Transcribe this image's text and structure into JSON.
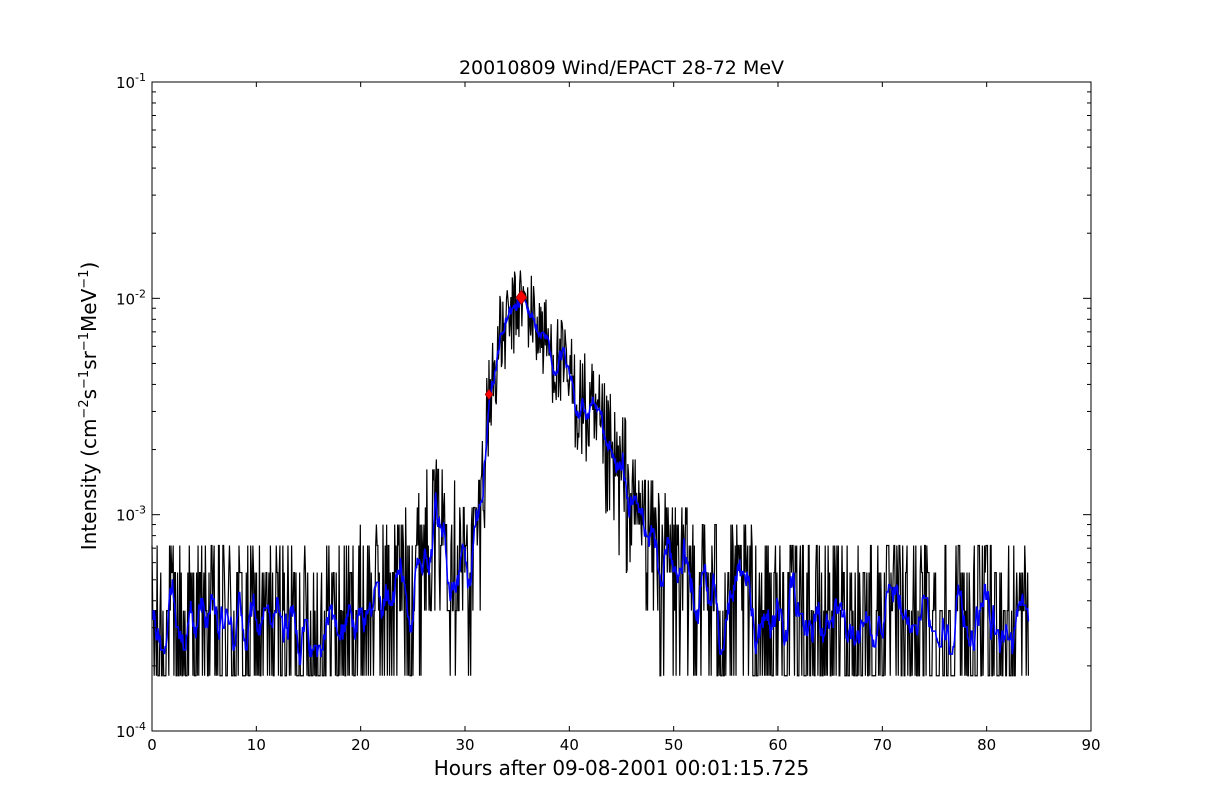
{
  "chart_data": {
    "type": "line",
    "title": "20010809 Wind/EPACT 28-72 MeV",
    "xlabel": "Hours after 09-08-2001 00:01:15.725",
    "ylabel": {
      "base": "Intensity (cm",
      "e1": "−2",
      "t1": "s",
      "e2": "−1",
      "t2": "sr",
      "e3": "−1",
      "t3": "MeV",
      "e4": "−1",
      "t4": ")"
    },
    "xlim": [
      0,
      90
    ],
    "ylim": [
      0.0001,
      0.1
    ],
    "yscale": "log",
    "grid": false,
    "x_tick_labels": [
      "0",
      "10",
      "20",
      "30",
      "40",
      "50",
      "60",
      "70",
      "80",
      "90"
    ],
    "y_tick_labels": [
      {
        "base": "10",
        "exp": "-4"
      },
      {
        "base": "10",
        "exp": "-3"
      },
      {
        "base": "10",
        "exp": "-2"
      },
      {
        "base": "10",
        "exp": "-1"
      }
    ],
    "series": [
      {
        "style": "raw",
        "color": "#000000",
        "x_range": [
          0,
          84
        ],
        "noise_floor": 0.00018,
        "envelope": [
          [
            0,
            0.00032
          ],
          [
            10,
            0.00032
          ],
          [
            18,
            0.00033
          ],
          [
            22,
            0.00045
          ],
          [
            25,
            0.0006
          ],
          [
            27,
            0.0011
          ],
          [
            28.5,
            0.0009
          ],
          [
            29.5,
            0.0007
          ],
          [
            30.5,
            0.0006
          ],
          [
            31.5,
            0.0011
          ],
          [
            32.3,
            0.0034
          ],
          [
            33.2,
            0.006
          ],
          [
            34.2,
            0.0075
          ],
          [
            35.3,
            0.0098
          ],
          [
            36.5,
            0.0082
          ],
          [
            38,
            0.006
          ],
          [
            40,
            0.004
          ],
          [
            42,
            0.0027
          ],
          [
            44,
            0.0016
          ],
          [
            47,
            0.001
          ],
          [
            50,
            0.0006
          ],
          [
            55,
            0.00042
          ],
          [
            60,
            0.00036
          ],
          [
            70,
            0.00033
          ],
          [
            84,
            0.00031
          ]
        ]
      },
      {
        "style": "smoothed",
        "color": "#0000ff"
      },
      {
        "style": "markers",
        "color": "#ff0000",
        "points": [
          {
            "x": 32.3,
            "y": 0.0036,
            "size": "small"
          },
          {
            "x": 35.4,
            "y": 0.0101,
            "size": "large"
          }
        ]
      }
    ]
  }
}
